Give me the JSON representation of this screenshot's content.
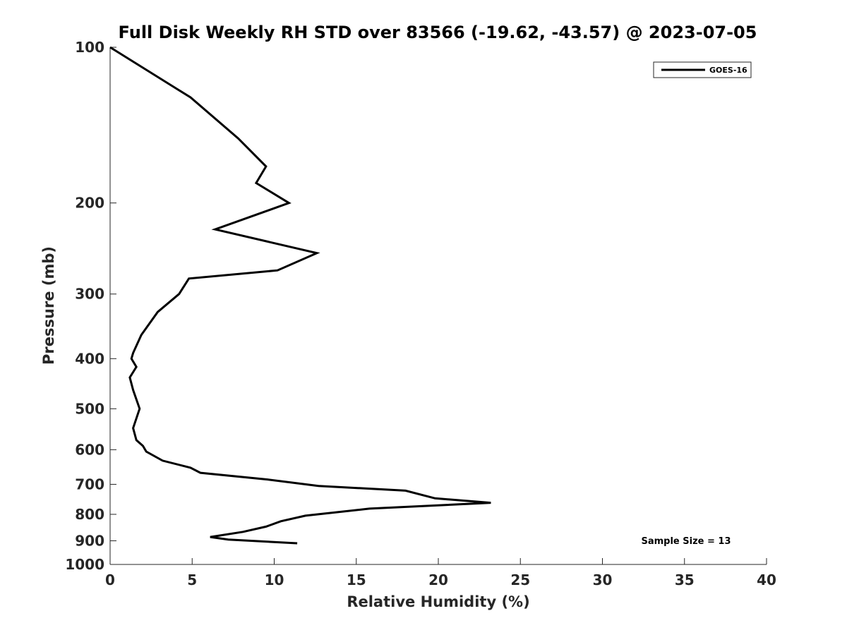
{
  "chart_data": {
    "type": "line",
    "title": "Full Disk Weekly RH STD over 83566 (-19.62, -43.57) @ 2023-07-05",
    "xlabel": "Relative Humidity (%)",
    "ylabel": "Pressure (mb)",
    "xlim": [
      0,
      40
    ],
    "ylim": [
      100,
      1000
    ],
    "yscale": "log",
    "y_reversed": true,
    "grid": false,
    "xticks": [
      0,
      5,
      10,
      15,
      20,
      25,
      30,
      35,
      40
    ],
    "yticks": [
      100,
      200,
      300,
      400,
      500,
      600,
      700,
      800,
      900,
      1000
    ],
    "legend": {
      "position": "top-right",
      "entries": [
        "GOES-16"
      ]
    },
    "annotation": "Sample Size = 13",
    "series": [
      {
        "name": "GOES-16",
        "color": "#000000",
        "x": [
          0.0,
          4.9,
          7.8,
          9.5,
          8.9,
          10.9,
          6.4,
          12.6,
          10.2,
          4.8,
          4.2,
          2.9,
          1.9,
          1.4,
          1.3,
          1.6,
          1.2,
          1.4,
          1.8,
          1.4,
          1.6,
          2.0,
          2.2,
          3.2,
          4.9,
          5.5,
          9.6,
          12.7,
          18.0,
          19.8,
          23.2,
          15.8,
          11.9,
          10.4,
          9.5,
          8.1,
          6.1,
          7.2,
          11.4
        ],
        "y": [
          100,
          125,
          150,
          170,
          183,
          200,
          225,
          250,
          270,
          280,
          300,
          325,
          360,
          390,
          400,
          415,
          435,
          460,
          500,
          545,
          575,
          590,
          605,
          630,
          650,
          665,
          685,
          705,
          720,
          745,
          760,
          780,
          805,
          825,
          845,
          865,
          885,
          895,
          910
        ]
      }
    ]
  }
}
